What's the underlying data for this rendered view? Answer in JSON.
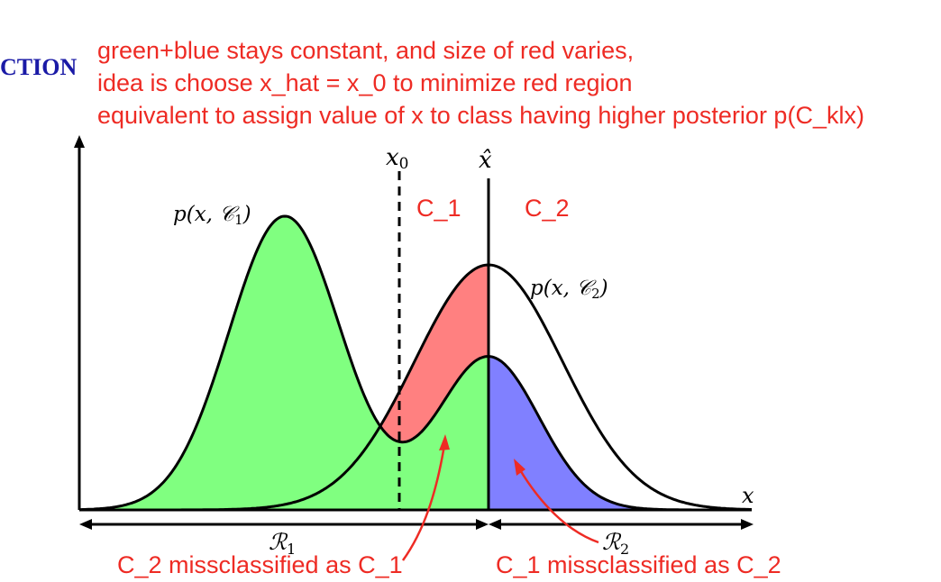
{
  "header": {
    "section_fragment": "CTION"
  },
  "notes": [
    "green+blue stays constant, and size of red varies,",
    "idea is choose x_hat = x_0 to minimize red region",
    "equivalent to assign value of x to class having higher posterior p(C_klx)"
  ],
  "diagram": {
    "threshold_label": "x",
    "threshold_subscript": "0",
    "decision_label": "x̂",
    "axis_label": "x",
    "curve1_label": "p(x, 𝒞",
    "curve1_subscript": "1",
    "curve1_close": ")",
    "curve2_label": "p(x, 𝒞",
    "curve2_subscript": "2",
    "curve2_close": ")",
    "class_left": "C_1",
    "class_right": "C_2",
    "region1_label": "ℛ",
    "region1_subscript": "1",
    "region2_label": "ℛ",
    "region2_subscript": "2",
    "annotation_left": "C_2 missclassified as C_1",
    "annotation_right": "C_1 missclassified as C_2",
    "colors": {
      "red_region": "#ff8080",
      "green_region": "#80ff80",
      "blue_region": "#8080ff",
      "annotation": "#ee2b24",
      "heading": "#1a1aa6"
    }
  }
}
